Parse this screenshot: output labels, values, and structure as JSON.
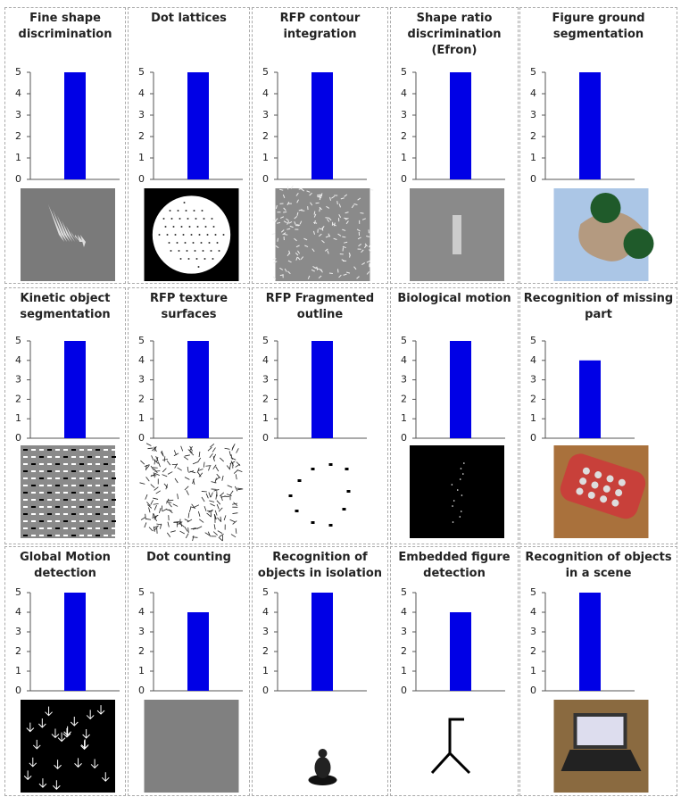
{
  "chart_data": [
    {
      "type": "bar",
      "title": "Fine shape discrimination",
      "categories": [
        null
      ],
      "values": [
        5
      ],
      "color": "#0000e6",
      "ylim": [
        0,
        5
      ],
      "yticks": [
        0,
        1,
        2,
        3,
        4,
        5
      ]
    },
    {
      "type": "bar",
      "title": "Dot lattices",
      "categories": [
        null
      ],
      "values": [
        5
      ],
      "color": "#0000e6",
      "ylim": [
        0,
        5
      ],
      "yticks": [
        0,
        1,
        2,
        3,
        4,
        5
      ]
    },
    {
      "type": "bar",
      "title": "RFP contour integration",
      "categories": [
        null
      ],
      "values": [
        5
      ],
      "color": "#0000e6",
      "ylim": [
        0,
        5
      ],
      "yticks": [
        0,
        1,
        2,
        3,
        4,
        5
      ]
    },
    {
      "type": "bar",
      "title": "Shape ratio discrimination (Efron)",
      "categories": [
        null
      ],
      "values": [
        5
      ],
      "color": "#0000e6",
      "ylim": [
        0,
        5
      ],
      "yticks": [
        0,
        1,
        2,
        3,
        4,
        5
      ]
    },
    {
      "type": "bar",
      "title": "Figure ground segmentation",
      "categories": [
        null
      ],
      "values": [
        5
      ],
      "color": "#0000e6",
      "ylim": [
        0,
        5
      ],
      "yticks": [
        0,
        1,
        2,
        3,
        4,
        5
      ]
    },
    {
      "type": "bar",
      "title": "Kinetic object segmentation",
      "categories": [
        null
      ],
      "values": [
        5
      ],
      "color": "#0000e6",
      "ylim": [
        0,
        5
      ],
      "yticks": [
        0,
        1,
        2,
        3,
        4,
        5
      ]
    },
    {
      "type": "bar",
      "title": "RFP texture surfaces",
      "categories": [
        null
      ],
      "values": [
        5
      ],
      "color": "#0000e6",
      "ylim": [
        0,
        5
      ],
      "yticks": [
        0,
        1,
        2,
        3,
        4,
        5
      ]
    },
    {
      "type": "bar",
      "title": "RFP Fragmented outline",
      "categories": [
        null
      ],
      "values": [
        5
      ],
      "color": "#0000e6",
      "ylim": [
        0,
        5
      ],
      "yticks": [
        0,
        1,
        2,
        3,
        4,
        5
      ]
    },
    {
      "type": "bar",
      "title": "Biological motion",
      "categories": [
        null
      ],
      "values": [
        5
      ],
      "color": "#0000e6",
      "ylim": [
        0,
        5
      ],
      "yticks": [
        0,
        1,
        2,
        3,
        4,
        5
      ]
    },
    {
      "type": "bar",
      "title": "Recognition of missing part",
      "categories": [
        null
      ],
      "values": [
        4
      ],
      "color": "#0000e6",
      "ylim": [
        0,
        5
      ],
      "yticks": [
        0,
        1,
        2,
        3,
        4,
        5
      ]
    },
    {
      "type": "bar",
      "title": "Global Motion detection",
      "categories": [
        null
      ],
      "values": [
        5
      ],
      "color": "#0000e6",
      "ylim": [
        0,
        5
      ],
      "yticks": [
        0,
        1,
        2,
        3,
        4,
        5
      ]
    },
    {
      "type": "bar",
      "title": "Dot counting",
      "categories": [
        null
      ],
      "values": [
        4
      ],
      "color": "#0000e6",
      "ylim": [
        0,
        5
      ],
      "yticks": [
        0,
        1,
        2,
        3,
        4,
        5
      ]
    },
    {
      "type": "bar",
      "title": "Recognition of objects in isolation",
      "categories": [
        null
      ],
      "values": [
        5
      ],
      "color": "#0000e6",
      "ylim": [
        0,
        5
      ],
      "yticks": [
        0,
        1,
        2,
        3,
        4,
        5
      ]
    },
    {
      "type": "bar",
      "title": "Embedded figure detection",
      "categories": [
        null
      ],
      "values": [
        4
      ],
      "color": "#0000e6",
      "ylim": [
        0,
        5
      ],
      "yticks": [
        0,
        1,
        2,
        3,
        4,
        5
      ]
    },
    {
      "type": "bar",
      "title": "Recognition of objects in a scene",
      "categories": [
        null
      ],
      "values": [
        5
      ],
      "color": "#0000e6",
      "ylim": [
        0,
        5
      ],
      "yticks": [
        0,
        1,
        2,
        3,
        4,
        5
      ]
    }
  ]
}
